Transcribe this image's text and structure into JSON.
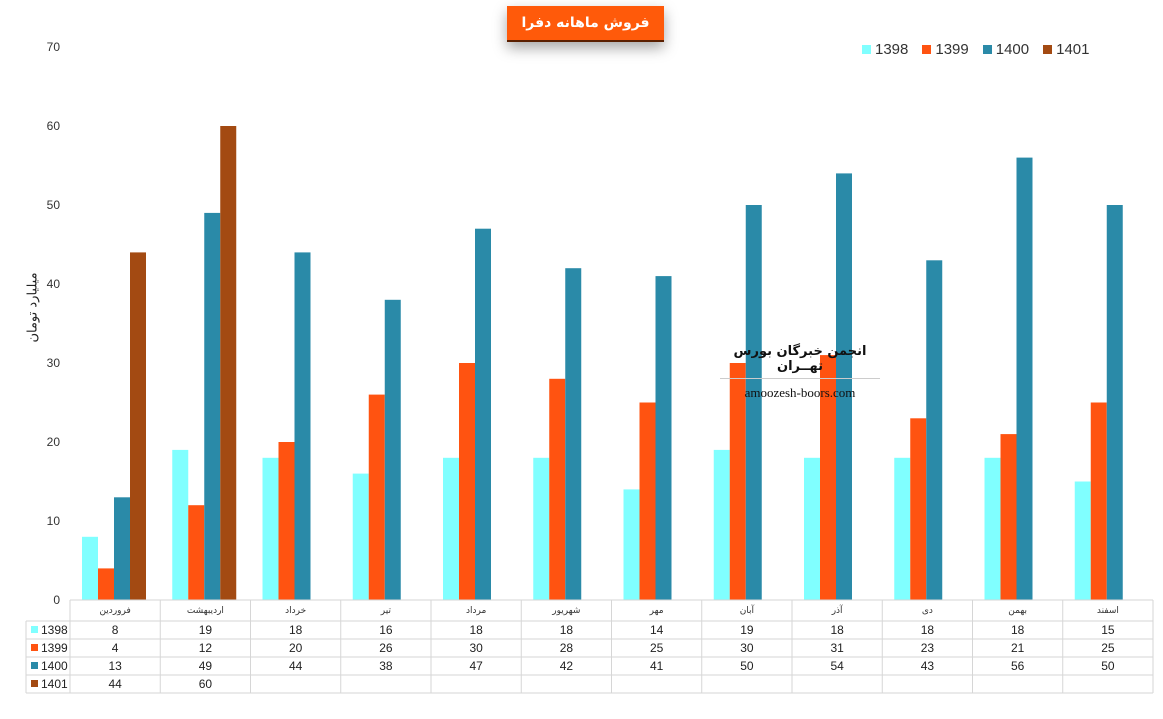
{
  "chart_data": {
    "type": "bar",
    "title": "فروش ماهانه دفرا",
    "ylabel": "میلیارد تومان",
    "ylim": [
      0,
      70
    ],
    "yticks": [
      0,
      10,
      20,
      30,
      40,
      50,
      60,
      70
    ],
    "grid": false,
    "legend_position": "top-right",
    "categories": [
      "فروردین",
      "اردیبهشت",
      "خرداد",
      "تیر",
      "مرداد",
      "شهریور",
      "مهر",
      "آبان",
      "آذر",
      "دی",
      "بهمن",
      "اسفند"
    ],
    "series": [
      {
        "name": "1398",
        "color": "#80ffff",
        "values": [
          8,
          19,
          18,
          16,
          18,
          18,
          14,
          19,
          18,
          18,
          18,
          15
        ]
      },
      {
        "name": "1399",
        "color": "#ff5311",
        "values": [
          4,
          12,
          20,
          26,
          30,
          28,
          25,
          30,
          31,
          23,
          21,
          25
        ]
      },
      {
        "name": "1400",
        "color": "#2a8aa8",
        "values": [
          13,
          49,
          44,
          38,
          47,
          42,
          41,
          50,
          54,
          43,
          56,
          50
        ]
      },
      {
        "name": "1401",
        "color": "#a34a12",
        "values": [
          44,
          60,
          null,
          null,
          null,
          null,
          null,
          null,
          null,
          null,
          null,
          null
        ]
      }
    ]
  },
  "watermark": {
    "title": "انجمن خبرگان بورس تهــران",
    "url": "amoozesh-boors.com"
  }
}
